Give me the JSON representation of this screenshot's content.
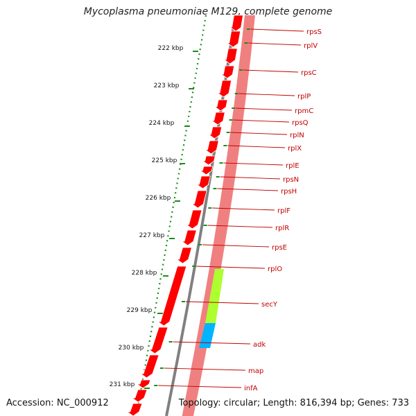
{
  "title": "Mycoplasma pneumoniae M129, complete genome",
  "footer": {
    "accession": "Accession: NC_000912",
    "summary": "Topology: circular; Length: 816,394 bp; Genes: 733"
  },
  "colors": {
    "gene": "#ff0000",
    "gene_track_bg": "#f08080",
    "backbone": "#808080",
    "ticks": "#1a8c1a",
    "label_text": "#c00000",
    "secY_highlight": "#adff2f",
    "adk_highlight": "#00b4ff"
  },
  "kbp_ticks": [
    "222 kbp",
    "223 kbp",
    "224 kbp",
    "225 kbp",
    "226 kbp",
    "227 kbp",
    "228 kbp",
    "229 kbp",
    "230 kbp",
    "231 kbp"
  ],
  "gene_labels": [
    "rpsS",
    "rplV",
    "rpsC",
    "rplP",
    "rpmC",
    "rpsQ",
    "rplN",
    "rplX",
    "rplE",
    "rpsN",
    "rpsH",
    "rplF",
    "rplR",
    "rpsE",
    "rplO",
    "secY",
    "adk",
    "map",
    "infA"
  ]
}
